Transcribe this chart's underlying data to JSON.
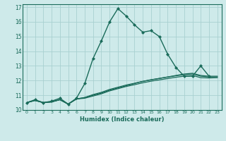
{
  "title": "",
  "xlabel": "Humidex (Indice chaleur)",
  "bg_color": "#ceeaea",
  "grid_color": "#a8d0d0",
  "line_color": "#1a6b5a",
  "xlim": [
    -0.5,
    23.5
  ],
  "ylim": [
    10,
    17.2
  ],
  "xticks": [
    0,
    1,
    2,
    3,
    4,
    5,
    6,
    7,
    8,
    9,
    10,
    11,
    12,
    13,
    14,
    15,
    16,
    17,
    18,
    19,
    20,
    21,
    22,
    23
  ],
  "yticks": [
    10,
    11,
    12,
    13,
    14,
    15,
    16,
    17
  ],
  "series": [
    {
      "x": [
        0,
        1,
        2,
        3,
        4,
        5,
        6,
        7,
        8,
        9,
        10,
        11,
        12,
        13,
        14,
        15,
        16,
        17,
        18,
        19,
        20,
        21,
        22
      ],
      "y": [
        10.5,
        10.7,
        10.5,
        10.6,
        10.8,
        10.4,
        10.8,
        11.8,
        13.5,
        14.7,
        16.0,
        16.9,
        16.4,
        15.8,
        15.3,
        15.4,
        15.0,
        13.8,
        12.9,
        12.3,
        12.3,
        13.0,
        12.3
      ],
      "marker": "D",
      "markersize": 2.0,
      "linewidth": 1.0,
      "linestyle": "-"
    },
    {
      "x": [
        0,
        1,
        2,
        3,
        4,
        5,
        6,
        7,
        8,
        9,
        10,
        11,
        12,
        13,
        14,
        15,
        16,
        17,
        18,
        19,
        20,
        21,
        22,
        23
      ],
      "y": [
        10.5,
        10.65,
        10.5,
        10.55,
        10.7,
        10.4,
        10.75,
        10.85,
        11.0,
        11.15,
        11.35,
        11.5,
        11.65,
        11.8,
        11.95,
        12.05,
        12.15,
        12.25,
        12.35,
        12.45,
        12.5,
        12.35,
        12.3,
        12.3
      ],
      "marker": null,
      "linewidth": 0.9,
      "linestyle": "-"
    },
    {
      "x": [
        0,
        1,
        2,
        3,
        4,
        5,
        6,
        7,
        8,
        9,
        10,
        11,
        12,
        13,
        14,
        15,
        16,
        17,
        18,
        19,
        20,
        21,
        22,
        23
      ],
      "y": [
        10.5,
        10.65,
        10.5,
        10.55,
        10.7,
        10.4,
        10.75,
        10.85,
        11.05,
        11.2,
        11.4,
        11.55,
        11.7,
        11.82,
        11.95,
        12.06,
        12.15,
        12.24,
        12.33,
        12.4,
        12.45,
        12.3,
        12.25,
        12.25
      ],
      "marker": null,
      "linewidth": 0.9,
      "linestyle": "-"
    },
    {
      "x": [
        0,
        1,
        2,
        3,
        4,
        5,
        6,
        7,
        8,
        9,
        10,
        11,
        12,
        13,
        14,
        15,
        16,
        17,
        18,
        19,
        20,
        21,
        22,
        23
      ],
      "y": [
        10.5,
        10.65,
        10.5,
        10.55,
        10.7,
        10.4,
        10.75,
        10.8,
        10.95,
        11.1,
        11.3,
        11.45,
        11.6,
        11.72,
        11.85,
        11.96,
        12.05,
        12.14,
        12.23,
        12.3,
        12.35,
        12.2,
        12.18,
        12.2
      ],
      "marker": null,
      "linewidth": 0.9,
      "linestyle": "-"
    }
  ]
}
